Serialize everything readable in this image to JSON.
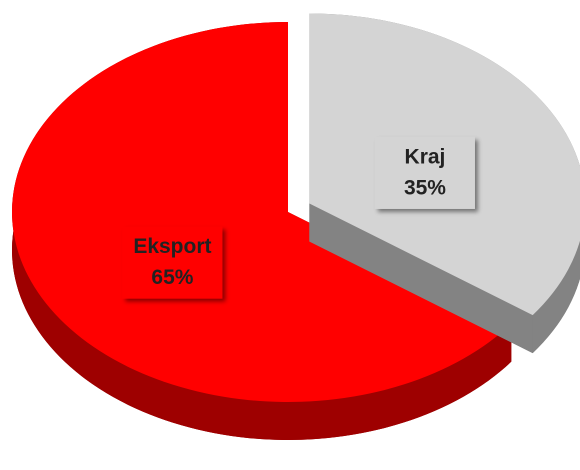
{
  "chart_data": {
    "type": "pie",
    "categories": [
      "Kraj",
      "Eksport"
    ],
    "values": [
      35,
      65
    ],
    "value_labels": [
      "35%",
      "65%"
    ],
    "colors": [
      "#d4d4d4",
      "#ff0000"
    ],
    "explode": [
      true,
      false
    ]
  }
}
